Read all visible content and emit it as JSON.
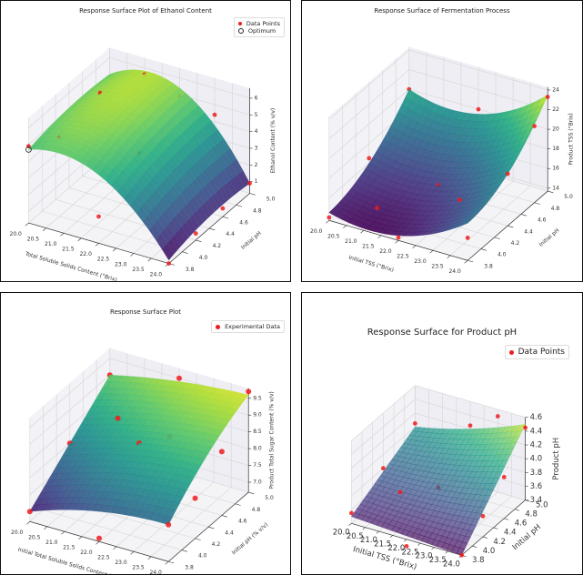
{
  "chart_data": [
    {
      "type": "surface3d",
      "title": "Response Surface Plot of Ethanol Content",
      "xlabel": "Total Soluble Solids Content (°Brix)",
      "ylabel": "Initial pH",
      "zlabel": "Ethanol Content (% v/v)",
      "xlim": [
        20,
        24
      ],
      "ylim": [
        3.8,
        5.0
      ],
      "zlim": [
        0.3,
        6.6
      ],
      "xticks": [
        "20.0",
        "20.5",
        "21.0",
        "21.5",
        "22.0",
        "22.5",
        "23.0",
        "23.5",
        "24.0"
      ],
      "yticks": [
        "3.8",
        "4.0",
        "4.2",
        "4.4",
        "4.6",
        "4.8",
        "5.0"
      ],
      "zticks": [
        "1",
        "2",
        "3",
        "4",
        "5",
        "6"
      ],
      "surface_grid": {
        "x": [
          20,
          22,
          24
        ],
        "y": [
          3.8,
          4.4,
          5.0
        ],
        "z": [
          [
            4.7,
            4.4,
            0.5
          ],
          [
            5.1,
            5.2,
            1.0
          ],
          [
            5.0,
            5.4,
            0.9
          ]
        ]
      },
      "colormap": "viridis",
      "legend": {
        "placement": "top-right",
        "entries": [
          "Data Points",
          "Optimum"
        ]
      },
      "points": [
        [
          20,
          3.8,
          4.9
        ],
        [
          20.5,
          4.0,
          5.0
        ],
        [
          20.5,
          4.6,
          5.6
        ],
        [
          21,
          5.0,
          5.6
        ],
        [
          22,
          3.8,
          1.9
        ],
        [
          22,
          4.4,
          3.6
        ],
        [
          22,
          5.0,
          4.9
        ],
        [
          23,
          5.0,
          4.4
        ],
        [
          24,
          3.8,
          0.3
        ],
        [
          24,
          4.2,
          0.7
        ],
        [
          24,
          4.6,
          0.8
        ],
        [
          24,
          5.0,
          0.9
        ]
      ],
      "optimum": [
        20,
        3.8,
        4.7
      ]
    },
    {
      "type": "surface3d",
      "title": "Response Surface of Fermentation Process",
      "xlabel": "Initial TSS (°Brix)",
      "ylabel": "Initial pH",
      "zlabel": "Product TSS (°Brix)",
      "xlim": [
        20,
        24
      ],
      "ylim": [
        3.8,
        5.0
      ],
      "zlim": [
        13.7,
        24.3
      ],
      "xticks": [
        "20.0",
        "20.5",
        "21.0",
        "21.5",
        "22.0",
        "22.5",
        "23.0",
        "23.5",
        "24.0"
      ],
      "yticks": [
        "3.8",
        "4.0",
        "4.2",
        "4.4",
        "4.6",
        "4.8",
        "5.0"
      ],
      "zticks": [
        "14",
        "16",
        "18",
        "20",
        "22",
        "24"
      ],
      "surface_grid": {
        "x": [
          20,
          22,
          24
        ],
        "y": [
          3.8,
          4.4,
          5.0
        ],
        "z": [
          [
            14.5,
            14.2,
            17.5
          ],
          [
            16.0,
            15.8,
            19.0
          ],
          [
            20.0,
            19.5,
            23.5
          ]
        ]
      },
      "colormap": "viridis",
      "legend": null,
      "points": [
        [
          20,
          3.8,
          14.0
        ],
        [
          20,
          4.4,
          16.5
        ],
        [
          20,
          5.0,
          20.0
        ],
        [
          21,
          4.0,
          14.8
        ],
        [
          22,
          3.8,
          14.0
        ],
        [
          22,
          4.4,
          15.8
        ],
        [
          22,
          5.0,
          20.0
        ],
        [
          23,
          4.2,
          16.5
        ],
        [
          24,
          3.8,
          16.0
        ],
        [
          24,
          4.4,
          19.0
        ],
        [
          24,
          4.8,
          21.5
        ],
        [
          24,
          5.0,
          23.3
        ]
      ]
    },
    {
      "type": "surface3d",
      "title": "Response Surface Plot",
      "xlabel": "Initial Total Soluble Solids Content (°Brix)",
      "ylabel": "Initial pH (% v/v)",
      "zlabel": "Product Total Sugar Content (% v/v)",
      "xlim": [
        20,
        24
      ],
      "ylim": [
        3.8,
        5.0
      ],
      "zlim": [
        6.7,
        9.8
      ],
      "xticks": [
        "20.0",
        "20.5",
        "21.0",
        "21.5",
        "22.0",
        "22.5",
        "23.0",
        "23.5",
        "24.0"
      ],
      "yticks": [
        "3.8",
        "4.0",
        "4.2",
        "4.4",
        "4.6",
        "4.8",
        "5.0"
      ],
      "zticks": [
        "7.0",
        "7.5",
        "8.0",
        "8.5",
        "9.0",
        "9.5"
      ],
      "surface_grid": {
        "x": [
          20,
          22,
          24
        ],
        "y": [
          3.8,
          4.4,
          5.0
        ],
        "z": [
          [
            7.0,
            7.6,
            7.8
          ],
          [
            8.0,
            8.6,
            8.9
          ],
          [
            9.0,
            9.4,
            9.6
          ]
        ]
      },
      "colormap": "viridis",
      "legend": {
        "placement": "top-right",
        "entries": [
          "Experimental Data"
        ]
      },
      "points": [
        [
          20,
          3.8,
          7.0
        ],
        [
          20,
          4.4,
          8.0
        ],
        [
          20,
          5.0,
          9.0
        ],
        [
          22,
          3.8,
          6.8
        ],
        [
          22,
          4.4,
          8.6
        ],
        [
          22,
          5.0,
          9.5
        ],
        [
          22.5,
          4.6,
          8.6
        ],
        [
          24,
          3.8,
          7.8
        ],
        [
          24,
          4.2,
          7.9
        ],
        [
          24,
          4.6,
          8.6
        ],
        [
          24,
          5.0,
          9.7
        ],
        [
          21,
          4.6,
          8.7
        ]
      ]
    },
    {
      "type": "surface3d",
      "title": "Response Surface for Product pH",
      "xlabel": "Initial TSS (°Brix)",
      "ylabel": "Initial pH",
      "zlabel": "Product pH",
      "xlim": [
        20,
        24
      ],
      "ylim": [
        3.8,
        5.0
      ],
      "zlim": [
        3.4,
        4.6
      ],
      "xticks": [
        "20.0",
        "20.5",
        "21.0",
        "21.5",
        "22.0",
        "22.5",
        "23.0",
        "23.5",
        "24.0"
      ],
      "yticks": [
        "3.8",
        "4.0",
        "4.2",
        "4.4",
        "4.6",
        "4.8",
        "5.0"
      ],
      "zticks": [
        "3.4",
        "3.6",
        "3.8",
        "4.0",
        "4.2",
        "4.4",
        "4.6"
      ],
      "surface_grid": {
        "x": [
          20,
          22,
          24
        ],
        "y": [
          3.8,
          4.4,
          5.0
        ],
        "z": [
          [
            3.5,
            3.45,
            3.4
          ],
          [
            3.75,
            3.8,
            3.95
          ],
          [
            4.0,
            4.2,
            4.5
          ]
        ]
      },
      "colormap": "viridis",
      "surface_alpha": 0.7,
      "legend": {
        "placement": "top-right",
        "entries": [
          "Data Points"
        ]
      },
      "points": [
        [
          20,
          3.8,
          3.55
        ],
        [
          20,
          4.4,
          3.8
        ],
        [
          20,
          5.0,
          4.05
        ],
        [
          22,
          3.8,
          3.3
        ],
        [
          22,
          4.4,
          3.75
        ],
        [
          22,
          5.0,
          4.25
        ],
        [
          21,
          4.2,
          3.7
        ],
        [
          24,
          3.8,
          3.4
        ],
        [
          24,
          4.2,
          3.7
        ],
        [
          24,
          4.6,
          4.0
        ],
        [
          24,
          5.0,
          4.45
        ],
        [
          23,
          5.0,
          4.5
        ]
      ]
    }
  ],
  "colors": {
    "points": "#ee1c1c",
    "pane": "#f2f2f7",
    "grid": "#d6d6d6"
  }
}
